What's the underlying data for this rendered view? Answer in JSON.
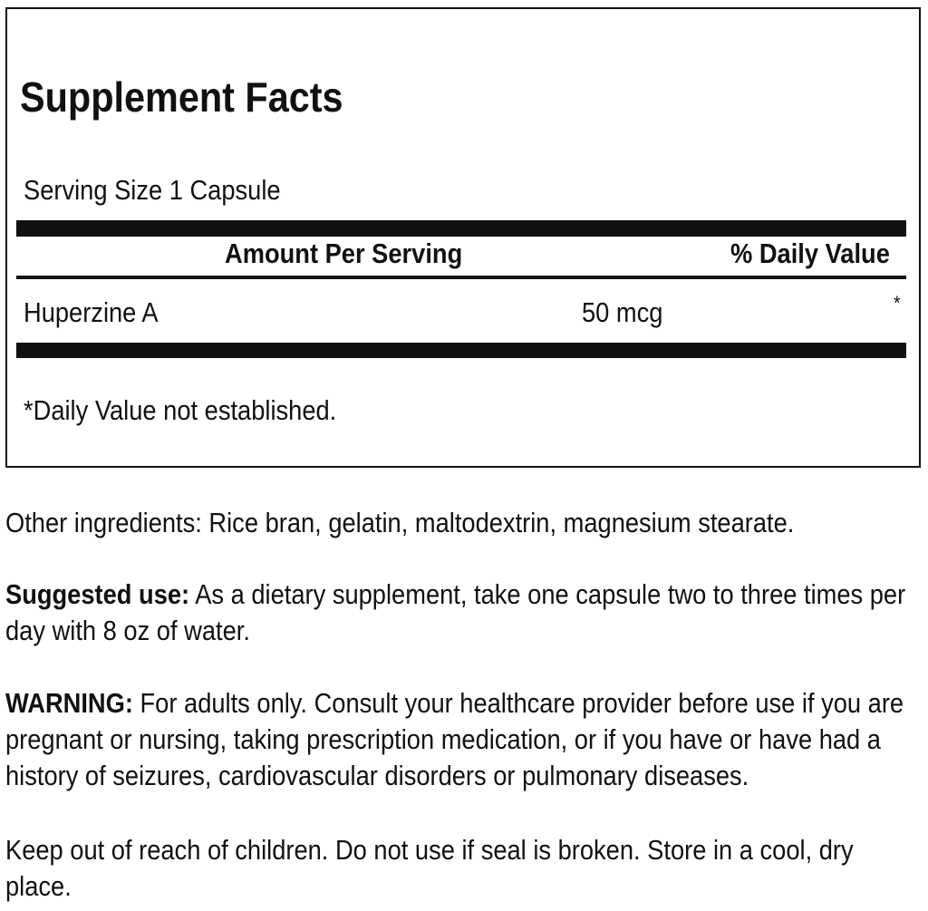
{
  "title": "Supplement Facts",
  "serving_size": "Serving Size 1 Capsule",
  "header": {
    "amount": "Amount Per Serving",
    "dv": "% Daily Value"
  },
  "rows": [
    {
      "name": "Huperzine A",
      "amount": "50 mcg",
      "dv": "*"
    }
  ],
  "footnote": "*Daily Value not established.",
  "other_ingredients": "Other ingredients: Rice bran, gelatin, maltodextrin, magnesium stearate.",
  "suggested_label": "Suggested use:",
  "suggested_text": " As a dietary supplement, take one capsule two to three times per day with 8 oz of water.",
  "warning_label": "WARNING:",
  "warning_text": " For adults only. Consult your healthcare provider before use if you are pregnant or nursing, taking prescription medication, or if you have or have had a history of seizures, cardiovascular disorders or pulmonary diseases.",
  "storage": "Keep out of reach of children. Do not use if seal is broken. Store in a cool, dry place."
}
